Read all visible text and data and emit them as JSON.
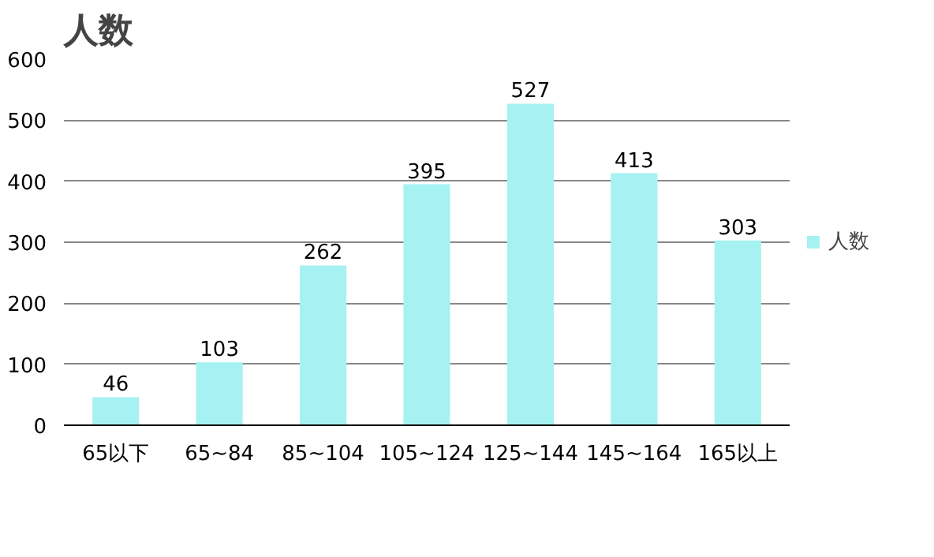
{
  "chart_data": {
    "type": "bar",
    "title": "人数",
    "categories": [
      "65以下",
      "65~84",
      "85~104",
      "105~124",
      "125~144",
      "145~164",
      "165以上"
    ],
    "series": [
      {
        "name": "人数",
        "color": "#a6f2f2",
        "values": [
          46,
          103,
          262,
          395,
          527,
          413,
          303
        ]
      }
    ],
    "ylim": [
      0,
      600
    ],
    "yticks": [
      0,
      100,
      200,
      300,
      400,
      500,
      600
    ],
    "grid": "y",
    "legend": "right",
    "data_labels": true
  }
}
